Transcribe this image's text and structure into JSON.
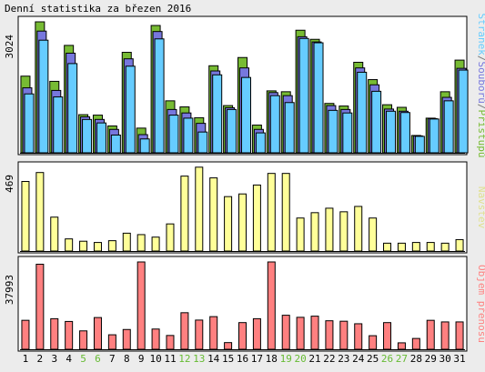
{
  "title": "Denní statistika za březen 2016",
  "colors": {
    "page_bg": "#ececec",
    "panel_bg": "#ffffff",
    "grid": "#e6e6e6",
    "hits": "#77bb33",
    "files": "#7777dd",
    "pages": "#66ccff",
    "visits": "#ffff99",
    "volume": "#ff8080",
    "weekend": "#66bb33",
    "axis_text": "#000000"
  },
  "chart_data": [
    {
      "type": "bar",
      "panel": "hits",
      "ylabel_value": "3024",
      "ymax": 3024,
      "legend": [
        {
          "text": "Stránek",
          "color": "#66ccff"
        },
        {
          "text": "/",
          "color": "#7a7a7a"
        },
        {
          "text": "Souborů",
          "color": "#7777dd"
        },
        {
          "text": "/",
          "color": "#7a7a7a"
        },
        {
          "text": "Přístupů",
          "color": "#77bb33"
        }
      ],
      "series": [
        {
          "name": "Přístupů",
          "color": "#77bb33",
          "values": [
            1770,
            3024,
            1650,
            2480,
            880,
            870,
            620,
            2320,
            570,
            2940,
            1200,
            1060,
            810,
            2010,
            1090,
            2200,
            640,
            1430,
            1410,
            2830,
            2620,
            1140,
            1080,
            2090,
            1690,
            1110,
            1050,
            400,
            800,
            1410,
            2140
          ]
        },
        {
          "name": "Souborů",
          "color": "#7777dd",
          "values": [
            1500,
            2810,
            1440,
            2300,
            830,
            770,
            540,
            2170,
            420,
            2800,
            1000,
            920,
            680,
            1890,
            1040,
            1960,
            540,
            1390,
            1320,
            2680,
            2560,
            1090,
            1000,
            1960,
            1570,
            1010,
            960,
            390,
            790,
            1280,
            1950
          ]
        },
        {
          "name": "Stránek",
          "color": "#66ccff",
          "values": [
            1360,
            2600,
            1290,
            2060,
            770,
            690,
            410,
            2000,
            320,
            2630,
            870,
            800,
            480,
            1800,
            1000,
            1740,
            460,
            1320,
            1160,
            2640,
            2540,
            980,
            920,
            1860,
            1420,
            960,
            930,
            380,
            780,
            1200,
            1910
          ]
        }
      ]
    },
    {
      "type": "bar",
      "panel": "visits",
      "ylabel_value": "469",
      "ymax": 469,
      "legend": [
        {
          "text": "Návštěv",
          "color": "#e0e090"
        }
      ],
      "series": [
        {
          "name": "Návštěv",
          "color": "#ffff99",
          "values": [
            390,
            440,
            190,
            68,
            55,
            48,
            58,
            100,
            92,
            78,
            152,
            420,
            470,
            410,
            305,
            320,
            370,
            435,
            435,
            185,
            215,
            240,
            220,
            250,
            185,
            44,
            44,
            48,
            48,
            44,
            64
          ]
        }
      ]
    },
    {
      "type": "bar",
      "panel": "volume",
      "ylabel_value": "37993",
      "ymax": 37993,
      "legend": [
        {
          "text": "Objem přenosu",
          "color": "#ff8080"
        }
      ],
      "series": [
        {
          "name": "Objem přenosu",
          "color": "#ff8080",
          "values": [
            12600,
            37000,
            13300,
            12100,
            8000,
            13800,
            6300,
            8600,
            37993,
            8800,
            6000,
            15900,
            12700,
            14200,
            2900,
            11600,
            13300,
            37993,
            14800,
            13900,
            14400,
            12400,
            12200,
            11100,
            5900,
            11600,
            2800,
            4700,
            12600,
            11900,
            11900
          ]
        }
      ]
    }
  ],
  "days": [
    "1",
    "2",
    "3",
    "4",
    "5",
    "6",
    "7",
    "8",
    "9",
    "10",
    "11",
    "12",
    "13",
    "14",
    "15",
    "16",
    "17",
    "18",
    "19",
    "20",
    "21",
    "22",
    "23",
    "24",
    "25",
    "26",
    "27",
    "28",
    "29",
    "30",
    "31"
  ],
  "weekend_days": [
    5,
    6,
    12,
    13,
    19,
    20,
    26,
    27
  ]
}
